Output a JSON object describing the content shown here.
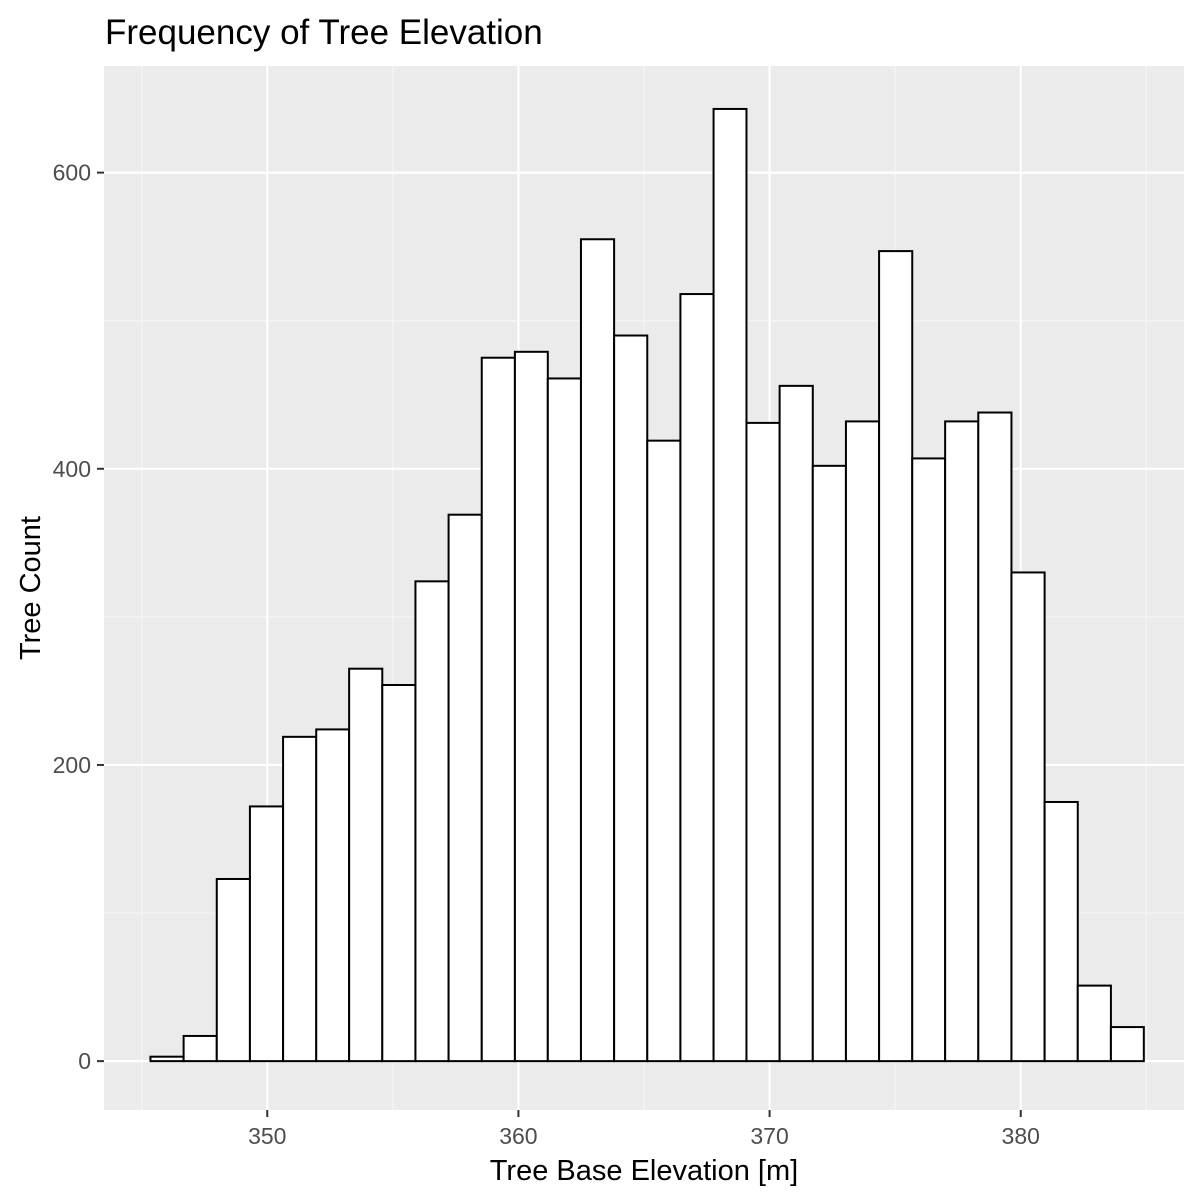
{
  "chart_data": {
    "type": "bar",
    "title": "Frequency of Tree Elevation",
    "xlabel": "Tree Base Elevation [m]",
    "ylabel": "Tree Count",
    "xlim": [
      343.5,
      386.5
    ],
    "ylim": [
      -33,
      672
    ],
    "x_ticks": [
      350,
      360,
      370,
      380
    ],
    "x_tick_labels": [
      "350",
      "360",
      "370",
      "380"
    ],
    "y_ticks": [
      0,
      200,
      400,
      600
    ],
    "y_tick_labels": [
      "0",
      "200",
      "400",
      "600"
    ],
    "grid": true,
    "bin_width": 1.318,
    "bins": [
      {
        "start": 345.35,
        "end": 346.67,
        "count": 3
      },
      {
        "start": 346.67,
        "end": 347.99,
        "count": 17
      },
      {
        "start": 347.99,
        "end": 349.31,
        "count": 123
      },
      {
        "start": 349.31,
        "end": 350.63,
        "count": 172
      },
      {
        "start": 350.63,
        "end": 351.95,
        "count": 219
      },
      {
        "start": 351.95,
        "end": 353.26,
        "count": 224
      },
      {
        "start": 353.26,
        "end": 354.58,
        "count": 265
      },
      {
        "start": 354.58,
        "end": 355.9,
        "count": 254
      },
      {
        "start": 355.9,
        "end": 357.22,
        "count": 324
      },
      {
        "start": 357.22,
        "end": 358.54,
        "count": 369
      },
      {
        "start": 358.54,
        "end": 359.86,
        "count": 475
      },
      {
        "start": 359.86,
        "end": 361.17,
        "count": 479
      },
      {
        "start": 361.17,
        "end": 362.49,
        "count": 461
      },
      {
        "start": 362.49,
        "end": 363.81,
        "count": 555
      },
      {
        "start": 363.81,
        "end": 365.13,
        "count": 490
      },
      {
        "start": 365.13,
        "end": 366.45,
        "count": 419
      },
      {
        "start": 366.45,
        "end": 367.77,
        "count": 518
      },
      {
        "start": 367.77,
        "end": 369.08,
        "count": 643
      },
      {
        "start": 369.08,
        "end": 370.4,
        "count": 431
      },
      {
        "start": 370.4,
        "end": 371.72,
        "count": 456
      },
      {
        "start": 371.72,
        "end": 373.04,
        "count": 402
      },
      {
        "start": 373.04,
        "end": 374.36,
        "count": 432
      },
      {
        "start": 374.36,
        "end": 375.68,
        "count": 547
      },
      {
        "start": 375.68,
        "end": 376.99,
        "count": 407
      },
      {
        "start": 376.99,
        "end": 378.31,
        "count": 432
      },
      {
        "start": 378.31,
        "end": 379.63,
        "count": 438
      },
      {
        "start": 379.63,
        "end": 380.95,
        "count": 330
      },
      {
        "start": 380.95,
        "end": 382.27,
        "count": 175
      },
      {
        "start": 382.27,
        "end": 383.59,
        "count": 51
      },
      {
        "start": 383.59,
        "end": 384.9,
        "count": 23
      }
    ]
  },
  "colors": {
    "panel_background": "#ebebeb",
    "grid_major": "#ffffff",
    "grid_minor": "#f5f5f5",
    "bar_fill": "#ffffff",
    "bar_outline": "#000000",
    "tick_mark": "#333333",
    "tick_label": "#4d4d4d"
  }
}
